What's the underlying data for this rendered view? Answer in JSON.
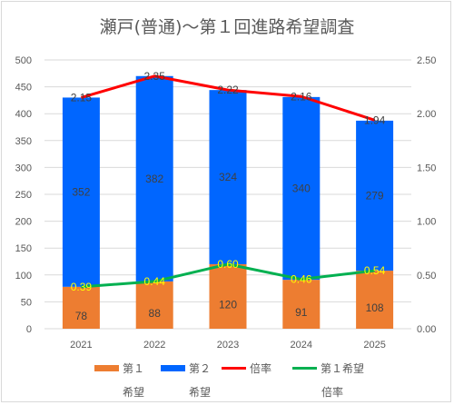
{
  "chart_data": {
    "type": "bar",
    "stacked": true,
    "title": "瀬戸(普通)〜第１回進路希望調査",
    "categories": [
      "2021",
      "2022",
      "2023",
      "2024",
      "2025"
    ],
    "series": [
      {
        "name": "第１希望",
        "axis": "left",
        "type": "bar",
        "color": "#ED7D31",
        "values": [
          78,
          88,
          120,
          91,
          108
        ]
      },
      {
        "name": "第２希望",
        "axis": "left",
        "type": "bar",
        "color": "#0066FF",
        "values": [
          352,
          382,
          324,
          340,
          279
        ]
      },
      {
        "name": "倍率",
        "axis": "right",
        "type": "line",
        "color": "#FF0000",
        "values": [
          2.15,
          2.35,
          2.22,
          2.16,
          1.94
        ]
      },
      {
        "name": "第１希望倍率",
        "axis": "right",
        "type": "line",
        "color": "#00B050",
        "values": [
          0.39,
          0.44,
          0.6,
          0.46,
          0.54
        ]
      }
    ],
    "y_left": {
      "min": 0,
      "max": 500,
      "step": 50,
      "ticks": [
        "0",
        "50",
        "100",
        "150",
        "200",
        "250",
        "300",
        "350",
        "400",
        "450",
        "500"
      ]
    },
    "y_right": {
      "min": 0,
      "max": 2.5,
      "step": 0.5,
      "ticks": [
        "0.00",
        "0.50",
        "1.00",
        "1.50",
        "2.00",
        "2.50"
      ]
    },
    "bar_labels": {
      "first": [
        "78",
        "88",
        "120",
        "91",
        "108"
      ],
      "second": [
        "352",
        "382",
        "324",
        "340",
        "279"
      ]
    },
    "line_labels": {
      "ratio": [
        "2.15",
        "2.35",
        "2.22",
        "2.16",
        "1.94"
      ],
      "first_ratio": [
        "0.39",
        "0.44",
        "0.60",
        "0.46",
        "0.54"
      ]
    },
    "grid": true,
    "legend_position": "bottom",
    "legend": [
      {
        "name": "第１",
        "name2": "希望",
        "kind": "bar",
        "color": "#ED7D31"
      },
      {
        "name": "第２",
        "name2": "希望",
        "kind": "bar",
        "color": "#0066FF"
      },
      {
        "name": "倍率",
        "name2": "",
        "kind": "line",
        "color": "#FF0000"
      },
      {
        "name": "第１希望",
        "name2": "倍率",
        "kind": "line",
        "color": "#00B050"
      }
    ],
    "colors": {
      "grid": "#d9d9d9",
      "label_dark": "#404040",
      "label_yellow": "#FFFF00"
    }
  }
}
